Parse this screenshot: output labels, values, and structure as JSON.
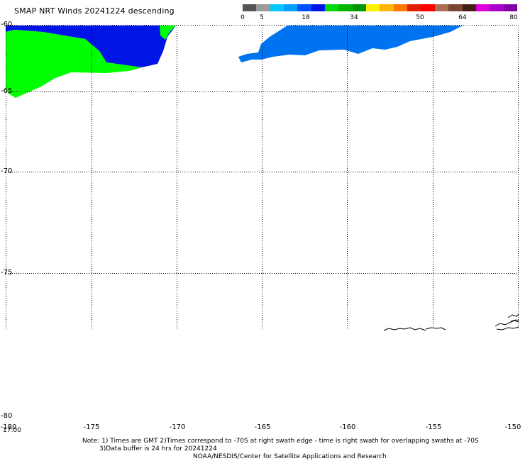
{
  "header": {
    "title": "SMAP NRT Winds  20241224 descending"
  },
  "colorbar": {
    "colors": [
      "#555555",
      "#9a9a9a",
      "#00c8ff",
      "#00a0ff",
      "#0050ff",
      "#0014e6",
      "#00dc00",
      "#00b400",
      "#009600",
      "#fff000",
      "#ffb400",
      "#ff7800",
      "#e61e00",
      "#ff0000",
      "#aa6e50",
      "#7d4632",
      "#461e14",
      "#dc00dc",
      "#aa00c8",
      "#8200aa"
    ],
    "labels": [
      "0",
      "5",
      "18",
      "34",
      "50",
      "64",
      "80"
    ]
  },
  "map": {
    "latitude_labels": [
      "-60",
      "-65",
      "-70",
      "-75",
      "-80"
    ],
    "longitude_labels": [
      "-180",
      "-175",
      "-170",
      "-165",
      "-160",
      "-155",
      "-150"
    ],
    "time_label": "17:00",
    "legend_name": "wind-speed-swath"
  },
  "footer": {
    "note_line1": "Note: 1) Times are GMT 2)Times correspond to -70S at right swath edge - time is right swath for overlapping swaths at -70S",
    "note_line2": "3)Data buffer is 24 hrs for 20241224",
    "credit": "NOAA/NESDIS/Center for Satellite Applications and Research"
  }
}
